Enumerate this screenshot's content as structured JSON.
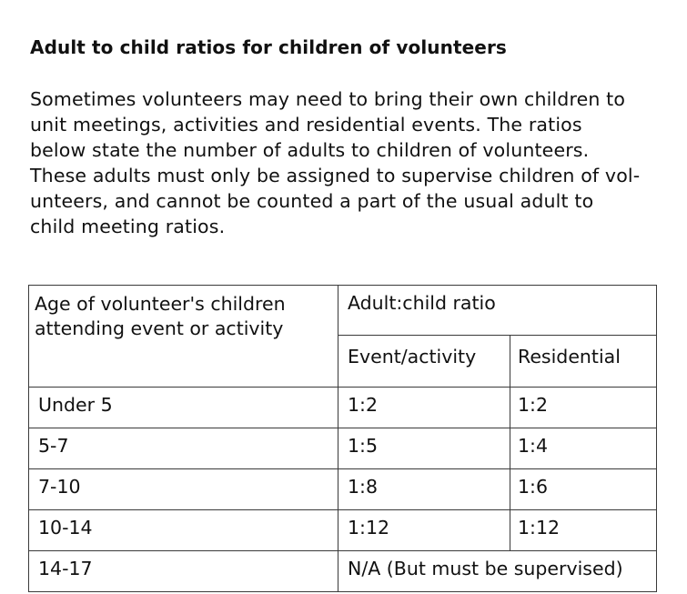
{
  "document": {
    "heading": "Adult to child ratios for children of volunteers",
    "paragraph_lines": [
      "Sometimes volunteers may need to bring their own children to",
      "unit meetings, activities and residential events. The ratios",
      "below state the number of adults to children of volunteers.",
      "These adults must only be assigned to supervise children of vol-",
      "unteers, and cannot be counted a part of the usual adult to",
      "child meeting ratios."
    ]
  },
  "table": {
    "age_header_lines": [
      "Age of volunteer's children",
      "attending event or activity"
    ],
    "ratio_header": "Adult:child ratio",
    "event_header": "Event/activity",
    "residential_header": "Residential",
    "rows": [
      {
        "age": "Under 5",
        "event": "1:2",
        "residential": "1:2"
      },
      {
        "age": "5-7",
        "event": "1:5",
        "residential": "1:4"
      },
      {
        "age": "7-10",
        "event": "1:8",
        "residential": "1:6"
      },
      {
        "age": "10-14",
        "event": "1:12",
        "residential": "1:12"
      },
      {
        "age": "14-17",
        "merged": "N/A (But must be supervised)"
      }
    ]
  }
}
